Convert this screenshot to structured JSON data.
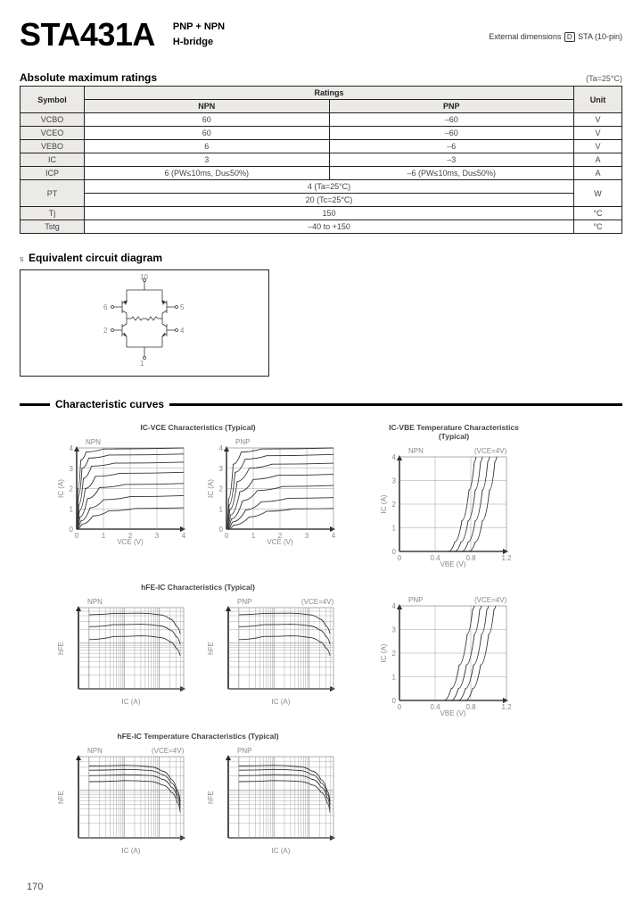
{
  "header": {
    "part_number": "STA431A",
    "sub1": "PNP + NPN",
    "sub2": "H-bridge",
    "ext_dims_prefix": "External dimensions",
    "ext_dims_d": "D",
    "ext_dims_suffix": "STA (10-pin)"
  },
  "ratings": {
    "title": "Absolute maximum ratings",
    "ta_note": "(Ta=25°C)",
    "head_symbol": "Symbol",
    "head_ratings": "Ratings",
    "head_npn": "NPN",
    "head_pnp": "PNP",
    "head_unit": "Unit",
    "rows": [
      {
        "sym": "VCBO",
        "npn": "60",
        "pnp": "–60",
        "unit": "V"
      },
      {
        "sym": "VCEO",
        "npn": "60",
        "pnp": "–60",
        "unit": "V"
      },
      {
        "sym": "VEBO",
        "npn": "6",
        "pnp": "–6",
        "unit": "V"
      },
      {
        "sym": "IC",
        "npn": "3",
        "pnp": "–3",
        "unit": "A"
      },
      {
        "sym": "ICP",
        "npn": "6 (PW≤10ms, Du≤50%)",
        "pnp": "–6 (PW≤10ms, Du≤50%)",
        "unit": "A"
      }
    ],
    "pt_sym": "PT",
    "pt_line1": "4 (Ta=25°C)",
    "pt_line2": "20 (Tc=25°C)",
    "pt_unit": "W",
    "tj_sym": "Tj",
    "tj_val": "150",
    "tj_unit": "°C",
    "tstg_sym": "Tstg",
    "tstg_val": "–40 to +150",
    "tstg_unit": "°C"
  },
  "circuit": {
    "prefix": "s",
    "title": "Equivalent circuit diagram",
    "pins": {
      "p6": "6",
      "p5": "5",
      "p2": "2",
      "p4": "4",
      "p1": "1",
      "p10": "10"
    }
  },
  "curves": {
    "title": "Characteristic curves"
  },
  "charts": {
    "ic_vce_title": "IC-VCE Characteristics (Typical)",
    "hfe_ic_title": "hFE-IC Characteristics (Typical)",
    "hfe_temp_title": "hFE-IC Temperature Characteristics (Typical)",
    "ic_vbe_temp_title": "IC-VBE Temperature Characteristics (Typical)",
    "npn": "NPN",
    "pnp": "PNP",
    "vce_label": "VCE (V)",
    "ic_label": "IC (A)",
    "hfe_label": "hFE",
    "ic_a_label": "IC (A)",
    "vbe_label": "VBE (V)",
    "vce_cond": "(VCE=4V)",
    "style": {
      "axis_color": "#222222",
      "grid_color": "#888888",
      "curve_color": "#333333",
      "bg": "#ffffff",
      "width": 150,
      "height": 125,
      "side_width": 150,
      "side_height": 140
    },
    "ic_vce": {
      "xticks": [
        0,
        1,
        2,
        3,
        4
      ],
      "yticks": [
        0,
        1,
        2,
        3,
        4
      ],
      "curves_npn": [
        [
          [
            0,
            0
          ],
          [
            0.05,
            2.0
          ],
          [
            0.15,
            3.4
          ],
          [
            0.35,
            3.8
          ],
          [
            1,
            3.95
          ],
          [
            4,
            4.0
          ]
        ],
        [
          [
            0,
            0
          ],
          [
            0.06,
            1.6
          ],
          [
            0.2,
            3.0
          ],
          [
            0.45,
            3.5
          ],
          [
            1.2,
            3.65
          ],
          [
            4,
            3.7
          ]
        ],
        [
          [
            0,
            0
          ],
          [
            0.08,
            1.2
          ],
          [
            0.25,
            2.5
          ],
          [
            0.55,
            3.1
          ],
          [
            1.4,
            3.25
          ],
          [
            4,
            3.3
          ]
        ],
        [
          [
            0,
            0
          ],
          [
            0.1,
            0.9
          ],
          [
            0.32,
            2.0
          ],
          [
            0.7,
            2.6
          ],
          [
            1.6,
            2.75
          ],
          [
            4,
            2.8
          ]
        ],
        [
          [
            0,
            0
          ],
          [
            0.12,
            0.6
          ],
          [
            0.4,
            1.5
          ],
          [
            0.85,
            2.05
          ],
          [
            1.8,
            2.2
          ],
          [
            4,
            2.25
          ]
        ],
        [
          [
            0,
            0
          ],
          [
            0.15,
            0.4
          ],
          [
            0.5,
            1.05
          ],
          [
            1.0,
            1.45
          ],
          [
            2.0,
            1.6
          ],
          [
            4,
            1.65
          ]
        ],
        [
          [
            0,
            0
          ],
          [
            0.2,
            0.25
          ],
          [
            0.6,
            0.65
          ],
          [
            1.2,
            0.9
          ],
          [
            2.2,
            1.02
          ],
          [
            4,
            1.05
          ]
        ]
      ],
      "curves_pnp": [
        [
          [
            0,
            0
          ],
          [
            0.08,
            1.5
          ],
          [
            0.25,
            3.2
          ],
          [
            0.55,
            3.8
          ],
          [
            1.3,
            3.95
          ],
          [
            4,
            4.0
          ]
        ],
        [
          [
            0,
            0
          ],
          [
            0.1,
            1.2
          ],
          [
            0.32,
            2.8
          ],
          [
            0.7,
            3.45
          ],
          [
            1.5,
            3.62
          ],
          [
            4,
            3.68
          ]
        ],
        [
          [
            0,
            0
          ],
          [
            0.12,
            0.95
          ],
          [
            0.4,
            2.35
          ],
          [
            0.85,
            3.0
          ],
          [
            1.7,
            3.2
          ],
          [
            4,
            3.25
          ]
        ],
        [
          [
            0,
            0
          ],
          [
            0.15,
            0.7
          ],
          [
            0.5,
            1.85
          ],
          [
            1.0,
            2.45
          ],
          [
            1.9,
            2.65
          ],
          [
            4,
            2.7
          ]
        ],
        [
          [
            0,
            0
          ],
          [
            0.18,
            0.5
          ],
          [
            0.6,
            1.4
          ],
          [
            1.15,
            1.9
          ],
          [
            2.1,
            2.1
          ],
          [
            4,
            2.15
          ]
        ],
        [
          [
            0,
            0
          ],
          [
            0.22,
            0.35
          ],
          [
            0.72,
            0.95
          ],
          [
            1.3,
            1.35
          ],
          [
            2.3,
            1.52
          ],
          [
            4,
            1.55
          ]
        ],
        [
          [
            0,
            0
          ],
          [
            0.28,
            0.2
          ],
          [
            0.85,
            0.6
          ],
          [
            1.5,
            0.88
          ],
          [
            2.5,
            1.0
          ],
          [
            4,
            1.02
          ]
        ]
      ]
    },
    "hfe_ic": {
      "is_log": true,
      "curves": [
        [
          [
            0.01,
            420
          ],
          [
            0.05,
            450
          ],
          [
            0.3,
            455
          ],
          [
            1,
            420
          ],
          [
            2,
            340
          ],
          [
            3,
            240
          ],
          [
            4,
            160
          ]
        ],
        [
          [
            0.01,
            230
          ],
          [
            0.05,
            255
          ],
          [
            0.3,
            260
          ],
          [
            1,
            240
          ],
          [
            2,
            195
          ],
          [
            3,
            140
          ],
          [
            4,
            95
          ]
        ],
        [
          [
            0.01,
            120
          ],
          [
            0.05,
            140
          ],
          [
            0.3,
            145
          ],
          [
            1,
            133
          ],
          [
            2,
            108
          ],
          [
            3,
            78
          ],
          [
            4,
            53
          ]
        ]
      ],
      "ylim": [
        10,
        600
      ]
    },
    "hfe_temp": {
      "is_log": true,
      "curves": [
        [
          [
            0.01,
            320
          ],
          [
            0.1,
            330
          ],
          [
            0.5,
            310
          ],
          [
            1.2,
            250
          ],
          [
            2.2,
            165
          ],
          [
            3.3,
            95
          ],
          [
            4,
            58
          ]
        ],
        [
          [
            0.01,
            260
          ],
          [
            0.1,
            270
          ],
          [
            0.5,
            258
          ],
          [
            1.2,
            210
          ],
          [
            2.2,
            140
          ],
          [
            3.3,
            82
          ],
          [
            4,
            50
          ]
        ],
        [
          [
            0.01,
            200
          ],
          [
            0.1,
            210
          ],
          [
            0.5,
            202
          ],
          [
            1.2,
            168
          ],
          [
            2.2,
            115
          ],
          [
            3.3,
            68
          ],
          [
            4,
            42
          ]
        ],
        [
          [
            0.01,
            150
          ],
          [
            0.1,
            158
          ],
          [
            0.5,
            152
          ],
          [
            1.2,
            128
          ],
          [
            2.2,
            90
          ],
          [
            3.3,
            54
          ],
          [
            4,
            34
          ]
        ]
      ],
      "ylim": [
        10,
        500
      ]
    },
    "ic_vbe": {
      "xlim": [
        0,
        1.2
      ],
      "ylim": [
        0,
        4
      ],
      "curves_npn": [
        [
          [
            0.55,
            0
          ],
          [
            0.62,
            0.4
          ],
          [
            0.7,
            1.3
          ],
          [
            0.78,
            2.6
          ],
          [
            0.84,
            3.8
          ],
          [
            0.86,
            4
          ]
        ],
        [
          [
            0.62,
            0
          ],
          [
            0.69,
            0.4
          ],
          [
            0.77,
            1.3
          ],
          [
            0.85,
            2.6
          ],
          [
            0.91,
            3.8
          ],
          [
            0.93,
            4
          ]
        ],
        [
          [
            0.7,
            0
          ],
          [
            0.77,
            0.4
          ],
          [
            0.85,
            1.3
          ],
          [
            0.93,
            2.6
          ],
          [
            0.99,
            3.8
          ],
          [
            1.01,
            4
          ]
        ],
        [
          [
            0.78,
            0
          ],
          [
            0.85,
            0.4
          ],
          [
            0.93,
            1.3
          ],
          [
            1.01,
            2.6
          ],
          [
            1.07,
            3.8
          ],
          [
            1.09,
            4
          ]
        ]
      ],
      "curves_pnp": [
        [
          [
            0.5,
            0
          ],
          [
            0.58,
            0.5
          ],
          [
            0.67,
            1.5
          ],
          [
            0.76,
            2.8
          ],
          [
            0.82,
            3.85
          ],
          [
            0.84,
            4
          ]
        ],
        [
          [
            0.58,
            0
          ],
          [
            0.66,
            0.5
          ],
          [
            0.75,
            1.5
          ],
          [
            0.84,
            2.8
          ],
          [
            0.9,
            3.85
          ],
          [
            0.92,
            4
          ]
        ],
        [
          [
            0.66,
            0
          ],
          [
            0.74,
            0.5
          ],
          [
            0.83,
            1.5
          ],
          [
            0.92,
            2.8
          ],
          [
            0.98,
            3.85
          ],
          [
            1.0,
            4
          ]
        ],
        [
          [
            0.74,
            0
          ],
          [
            0.82,
            0.5
          ],
          [
            0.91,
            1.5
          ],
          [
            1.0,
            2.8
          ],
          [
            1.06,
            3.85
          ],
          [
            1.08,
            4
          ]
        ]
      ]
    }
  },
  "page_number": "170"
}
